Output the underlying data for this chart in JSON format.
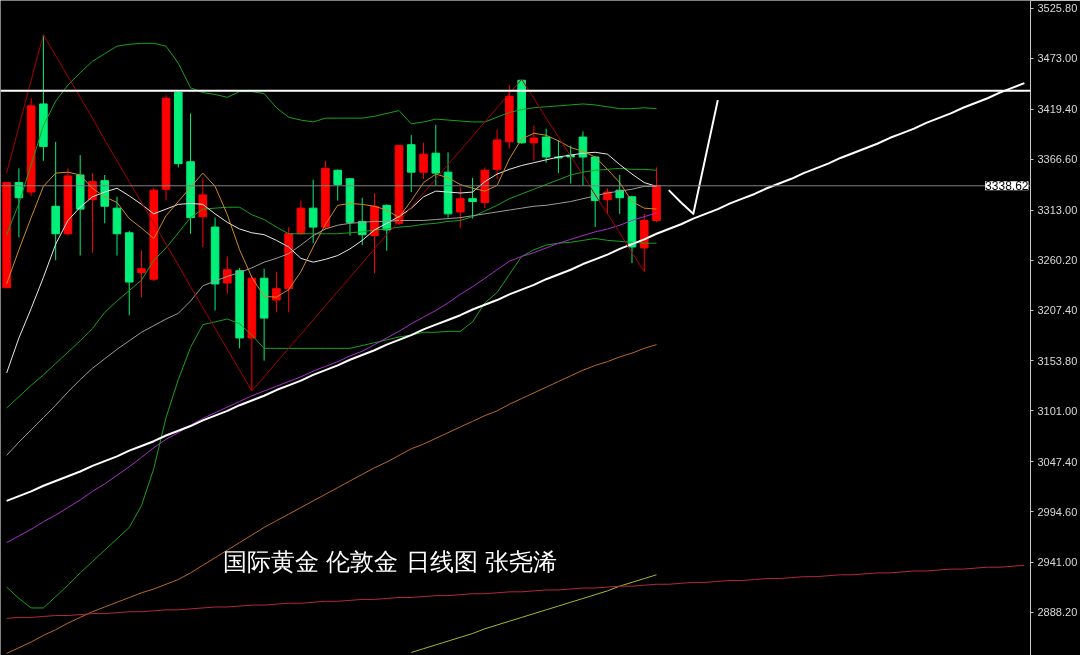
{
  "chart_data": {
    "type": "candlestick",
    "categories": [
      null,
      null,
      null,
      null,
      null,
      null,
      null,
      null,
      null,
      null,
      null,
      null,
      null,
      null,
      null,
      null,
      null,
      null,
      null,
      null,
      null,
      null,
      null,
      null,
      null,
      null,
      null,
      null,
      null,
      null,
      null,
      null,
      null,
      null,
      null,
      null,
      null,
      null,
      null,
      null,
      null,
      null,
      null,
      null,
      null,
      null,
      null,
      null,
      null,
      null,
      null,
      null,
      null,
      null,
      null,
      null,
      null,
      null,
      null,
      null,
      null,
      null,
      null,
      null,
      null,
      null,
      null,
      null,
      null,
      null,
      null,
      null,
      null,
      null,
      null,
      null,
      null,
      null,
      null,
      null,
      null,
      null,
      null,
      null
    ],
    "ohlc": [
      [
        3231,
        3342,
        3231,
        3342
      ],
      [
        3342,
        3357,
        3284,
        3326
      ],
      [
        3332,
        3431,
        3328,
        3423
      ],
      [
        3425,
        3498,
        3365,
        3380
      ],
      [
        3317,
        3385,
        3260,
        3288
      ],
      [
        3288,
        3357,
        3286,
        3349
      ],
      [
        3350,
        3371,
        3265,
        3314
      ],
      [
        3324,
        3352,
        3268,
        3343
      ],
      [
        3344,
        3350,
        3299,
        3317
      ],
      [
        3315,
        3327,
        3265,
        3288
      ],
      [
        3289,
        3291,
        3202,
        3237
      ],
      [
        3247,
        3270,
        3221,
        3251
      ],
      [
        3240,
        3336,
        3238,
        3334
      ],
      [
        3335,
        3434,
        3323,
        3431
      ],
      [
        3437,
        3438,
        3358,
        3362
      ],
      [
        3364,
        3415,
        3288,
        3305
      ],
      [
        3306,
        3346,
        3274,
        3329
      ],
      [
        3295,
        3305,
        3207,
        3235
      ],
      [
        3236,
        3264,
        3225,
        3250
      ],
      [
        3249,
        3252,
        3167,
        3178
      ],
      [
        3178,
        3244,
        3122,
        3241
      ],
      [
        3241,
        3251,
        3154,
        3199
      ],
      [
        3218,
        3248,
        3205,
        3230
      ],
      [
        3230,
        3295,
        3205,
        3288
      ],
      [
        3288,
        3323,
        3287,
        3315
      ],
      [
        3315,
        3345,
        3278,
        3295
      ],
      [
        3295,
        3365,
        3293,
        3357
      ],
      [
        3355,
        3356,
        3323,
        3340
      ],
      [
        3346,
        3347,
        3286,
        3300
      ],
      [
        3301,
        3326,
        3276,
        3287
      ],
      [
        3286,
        3331,
        3246,
        3317
      ],
      [
        3318,
        3319,
        3270,
        3292
      ],
      [
        3299,
        3382,
        3297,
        3381
      ],
      [
        3382,
        3392,
        3332,
        3353
      ],
      [
        3353,
        3384,
        3346,
        3372
      ],
      [
        3373,
        3403,
        3339,
        3352
      ],
      [
        3353,
        3374,
        3305,
        3309
      ],
      [
        3311,
        3337,
        3294,
        3325
      ],
      [
        3325,
        3347,
        3304,
        3322
      ],
      [
        3321,
        3358,
        3315,
        3355
      ],
      [
        3356,
        3398,
        3346,
        3387
      ],
      [
        3385,
        3445,
        3378,
        3433
      ],
      [
        3450,
        3451,
        3383,
        3384
      ],
      [
        3384,
        3402,
        3365,
        3389
      ],
      [
        3390,
        3399,
        3363,
        3369
      ],
      [
        3369,
        3387,
        3352,
        3368
      ],
      [
        3371,
        3381,
        3341,
        3369
      ],
      [
        3390,
        3396,
        3339,
        3369
      ],
      [
        3369,
        3370,
        3295,
        3323
      ],
      [
        3324,
        3336,
        3309,
        3332
      ],
      [
        3334,
        3350,
        3309,
        3326
      ],
      [
        3327,
        3328,
        3257,
        3274
      ],
      [
        3273,
        3309,
        3248,
        3302
      ],
      [
        3302,
        3358,
        3300,
        3339
      ],
      null,
      null,
      null,
      null,
      null,
      null,
      null,
      null,
      null,
      null,
      null,
      null,
      null,
      null,
      null,
      null,
      null,
      null,
      null,
      null,
      null,
      null,
      null,
      null,
      null,
      null,
      null,
      null,
      null,
      null
    ],
    "colors": [
      "#ff0000",
      "#00f07a",
      "#ff0000",
      "#00f07a",
      "#00f07a",
      "#ff0000",
      "#00f07a",
      "#ff0000",
      "#00f07a",
      "#00f07a",
      "#00f07a",
      "#ff0000",
      "#ff0000",
      "#ff0000",
      "#00f07a",
      "#00f07a",
      "#ff0000",
      "#00f07a",
      "#ff0000",
      "#00f07a",
      "#ff0000",
      "#00f07a",
      "#ff0000",
      "#ff0000",
      "#ff0000",
      "#00f07a",
      "#ff0000",
      "#00f07a",
      "#00f07a",
      "#00f07a",
      "#ff0000",
      "#00f07a",
      "#ff0000",
      "#00f07a",
      "#ff0000",
      "#00f07a",
      "#00f07a",
      "#ff0000",
      "#00f07a",
      "#ff0000",
      "#ff0000",
      "#ff0000",
      "#00f07a",
      "#ff0000",
      "#00f07a",
      "#00f07a",
      "#00f07a",
      "#00f07a",
      "#00f07a",
      "#ff0000",
      "#00f07a",
      "#00f07a",
      "#ff0000",
      "#ff0000",
      null,
      null,
      null,
      null,
      null,
      null,
      null,
      null,
      null,
      null,
      null,
      null,
      null,
      null,
      null,
      null,
      null,
      null,
      null,
      null,
      null,
      null,
      null,
      null,
      null,
      null,
      null,
      null,
      null,
      null
    ],
    "series": [
      {
        "type": "line",
        "color": "#1aa01a",
        "values": [
          3287,
          3320,
          3361,
          3402,
          3428,
          3445,
          3458,
          3470,
          3478,
          3486,
          3488,
          3489,
          3489,
          3486,
          3468,
          3442,
          3437,
          3435,
          3432,
          3438,
          3438,
          3436,
          3421,
          3411,
          3408,
          3406,
          3410,
          3410,
          3410,
          3410,
          3412,
          3415,
          3418,
          3404,
          3406,
          3409,
          3408,
          3407,
          3406,
          3406,
          3411,
          3416,
          3419,
          3421,
          3422,
          3423,
          3424,
          3425,
          3424,
          3422,
          3420,
          3420,
          3421,
          3420,
          null,
          null,
          null,
          null,
          null,
          null,
          null,
          null,
          null,
          null,
          null,
          null,
          null,
          null,
          null,
          null,
          null,
          null,
          null,
          null,
          null,
          null,
          null,
          null,
          null,
          null,
          null,
          null,
          null,
          null
        ]
      },
      {
        "type": "line",
        "color": "#1aa01a",
        "values": [
          3104,
          3116,
          3128,
          3139,
          3151,
          3163,
          3175,
          3188,
          3205,
          3217,
          3228,
          3239,
          3260,
          3273,
          3289,
          3305,
          3314,
          3315,
          3316,
          3316,
          3308,
          3303,
          3295,
          3288,
          3288,
          3288,
          3288,
          3288,
          3289,
          3290,
          3292,
          3293,
          3295,
          3296,
          3298,
          3299,
          3301,
          3302,
          3306,
          3312,
          3318,
          3325,
          3330,
          3335,
          3340,
          3345,
          3350,
          3353,
          3355,
          3356,
          3357,
          3356,
          3356,
          3355,
          null,
          null,
          null,
          null,
          null,
          null,
          null,
          null,
          null,
          null,
          null,
          null,
          null,
          null,
          null,
          null,
          null,
          null,
          null,
          null,
          null,
          null,
          null,
          null,
          null,
          null,
          null,
          null,
          null,
          null
        ]
      },
      {
        "type": "line",
        "color": "#1aa01a",
        "values": [
          2915,
          2903,
          2893,
          2893,
          2905,
          2917,
          2930,
          2942,
          2954,
          2966,
          2978,
          3001,
          3040,
          3094,
          3134,
          3168,
          3192,
          3195,
          3198,
          3193,
          3181,
          3167,
          3167,
          3167,
          3167,
          3167,
          3167,
          3167,
          3167,
          3170,
          3173,
          3176,
          3179,
          3181,
          3184,
          3184,
          3185,
          3185,
          3195,
          3215,
          3226,
          3245,
          3264,
          3271,
          3276,
          3278,
          3279,
          3281,
          3283,
          3281,
          3280,
          3279,
          3278,
          3278,
          null,
          null,
          null,
          null,
          null,
          null,
          null,
          null,
          null,
          null,
          null,
          null,
          null,
          null,
          null,
          null,
          null,
          null,
          null,
          null,
          null,
          null,
          null,
          null,
          null,
          null,
          null,
          null,
          null,
          null
        ]
      },
      {
        "type": "line",
        "color": "#e6e6e6",
        "values": [
          3141,
          3178,
          3209,
          3242,
          3277,
          3302,
          3316,
          3327,
          3332,
          3336,
          3328,
          3319,
          3309,
          3314,
          3319,
          3320,
          3319,
          3309,
          3300,
          3293,
          3289,
          3287,
          3281,
          3274,
          3262,
          3258,
          3261,
          3265,
          3272,
          3281,
          3292,
          3299,
          3306,
          3315,
          3327,
          3333,
          3332,
          3331,
          3332,
          3343,
          3351,
          3356,
          3360,
          3363,
          3366,
          3369,
          3371,
          3373,
          3374,
          3372,
          3361,
          3351,
          3342,
          3338,
          null,
          null,
          null,
          null,
          null,
          null,
          null,
          null,
          null,
          null,
          null,
          null,
          null,
          null,
          null,
          null,
          null,
          null,
          null,
          null,
          null,
          null,
          null,
          null,
          null,
          null,
          null,
          null,
          null,
          null
        ]
      },
      {
        "type": "line",
        "color": "#9a9a9a",
        "values": [
          3054,
          3068,
          3081,
          3094,
          3107,
          3121,
          3134,
          3146,
          3156,
          3166,
          3175,
          3184,
          3191,
          3198,
          3204,
          3217,
          3233,
          3238,
          3243,
          3247,
          3252,
          3258,
          3262,
          3267,
          3276,
          3286,
          3293,
          3297,
          3299,
          3300,
          3301,
          3301,
          3302,
          3302,
          3302,
          3303,
          3304,
          3305,
          3307,
          3309,
          3311,
          3313,
          3315,
          3317,
          3318,
          3320,
          3322,
          3325,
          3328,
          3331,
          3333,
          3335,
          3338,
          3338,
          null,
          null,
          null,
          null,
          null,
          null,
          null,
          null,
          null,
          null,
          null,
          null,
          null,
          null,
          null,
          null,
          null,
          null,
          null,
          null,
          null,
          null,
          null,
          null,
          null,
          null,
          null,
          null,
          null,
          null
        ]
      },
      {
        "type": "line",
        "color": "#d08a1c",
        "values": [
          3235,
          3271,
          3305,
          3338,
          3352,
          3353,
          3350,
          3336,
          3327,
          3321,
          3304,
          3294,
          3283,
          3307,
          3322,
          3337,
          3352,
          3338,
          3308,
          3271,
          3242,
          3222,
          3221,
          3229,
          3248,
          3274,
          3298,
          3318,
          3320,
          3319,
          3317,
          3313,
          3305,
          3323,
          3342,
          3351,
          3347,
          3340,
          3336,
          3333,
          3339,
          3367,
          3388,
          3394,
          3392,
          3386,
          3379,
          3375,
          3369,
          3356,
          3342,
          3322,
          3315,
          3314,
          null,
          null,
          null,
          null,
          null,
          null,
          null,
          null,
          null,
          null,
          null,
          null,
          null,
          null,
          null,
          null,
          null,
          null,
          null,
          null,
          null,
          null,
          null,
          null,
          null,
          null,
          null,
          null,
          null,
          null
        ]
      },
      {
        "type": "line",
        "color": "#a82ec8",
        "values": [
          2962,
          2969,
          2976,
          2984,
          2991,
          2999,
          3007,
          3016,
          3024,
          3033,
          3042,
          3052,
          3062,
          3071,
          3078,
          3086,
          3093,
          3099,
          3105,
          3111,
          3117,
          3122,
          3127,
          3132,
          3137,
          3143,
          3148,
          3153,
          3159,
          3164,
          3171,
          3178,
          3185,
          3193,
          3200,
          3207,
          3215,
          3224,
          3232,
          3241,
          3250,
          3259,
          3264,
          3268,
          3273,
          3278,
          3282,
          3286,
          3290,
          3293,
          3297,
          3302,
          3306,
          3310,
          null,
          null,
          null,
          null,
          null,
          null,
          null,
          null,
          null,
          null,
          null,
          null,
          null,
          null,
          null,
          null,
          null,
          null,
          null,
          null,
          null,
          null,
          null,
          null,
          null,
          null,
          null,
          null,
          null,
          null
        ]
      },
      {
        "type": "line",
        "color": "#b86a28",
        "values": [
          2845,
          2851,
          2857,
          2864,
          2870,
          2877,
          2883,
          2889,
          2894,
          2899,
          2904,
          2909,
          2913,
          2918,
          2923,
          2930,
          2938,
          2946,
          2954,
          2962,
          2970,
          2978,
          2985,
          2992,
          2999,
          3006,
          3013,
          3020,
          3027,
          3034,
          3041,
          3047,
          3054,
          3061,
          3066,
          3072,
          3078,
          3084,
          3090,
          3096,
          3101,
          3108,
          3114,
          3120,
          3126,
          3132,
          3138,
          3144,
          3149,
          3153,
          3158,
          3162,
          3167,
          3171,
          null,
          null,
          null,
          null,
          null,
          null,
          null,
          null,
          null,
          null,
          null,
          null,
          null,
          null,
          null,
          null,
          null,
          null,
          null,
          null,
          null,
          null,
          null,
          null,
          null,
          null,
          null,
          null,
          null,
          null
        ]
      },
      {
        "type": "line",
        "color": "#a8b82a",
        "values": [
          null,
          null,
          null,
          null,
          null,
          null,
          null,
          null,
          null,
          null,
          null,
          null,
          null,
          null,
          null,
          null,
          null,
          null,
          null,
          null,
          null,
          null,
          null,
          null,
          null,
          null,
          null,
          null,
          null,
          null,
          null,
          null,
          null,
          2846,
          2850,
          2854,
          2858,
          2862,
          2866,
          2871,
          2875,
          2879,
          2883,
          2887,
          2891,
          2895,
          2899,
          2903,
          2907,
          2911,
          2916,
          2920,
          2924,
          2928,
          null,
          null,
          null,
          null,
          null,
          null,
          null,
          null,
          null,
          null,
          null,
          null,
          null,
          null,
          null,
          null,
          null,
          null,
          null,
          null,
          null,
          null,
          null,
          null,
          null,
          null,
          null,
          null,
          null,
          null
        ]
      },
      {
        "type": "line",
        "color": "#b4283c",
        "values": [
          2882,
          2883,
          2883,
          2884,
          2885,
          2885,
          2886,
          2887,
          2887,
          2888,
          2889,
          2889,
          2890,
          2891,
          2891,
          2892,
          2893,
          2894,
          2894,
          2895,
          2896,
          2896,
          2897,
          2898,
          2898,
          2899,
          2900,
          2900,
          2901,
          2902,
          2902,
          2903,
          2904,
          2904,
          2905,
          2906,
          2906,
          2907,
          2908,
          2908,
          2909,
          2910,
          2910,
          2911,
          2912,
          2912,
          2913,
          2914,
          2914,
          2915,
          2916,
          2916,
          2917,
          2918,
          2918,
          2919,
          2920,
          2920,
          2921,
          2922,
          2922,
          2923,
          2924,
          2924,
          2925,
          2926,
          2926,
          2927,
          2928,
          2928,
          2929,
          2930,
          2930,
          2931,
          2932,
          2932,
          2933,
          2934,
          2934,
          2935,
          2936,
          2936,
          2937,
          2938
        ]
      },
      {
        "type": "line",
        "color": "#ffffff",
        "values": [
          3006,
          3011,
          3016,
          3022,
          3027,
          3032,
          3037,
          3043,
          3048,
          3053,
          3059,
          3064,
          3069,
          3075,
          3080,
          3085,
          3091,
          3096,
          3101,
          3107,
          3112,
          3117,
          3123,
          3128,
          3133,
          3139,
          3144,
          3149,
          3155,
          3160,
          3165,
          3171,
          3176,
          3181,
          3187,
          3192,
          3197,
          3202,
          3208,
          3213,
          3218,
          3224,
          3229,
          3234,
          3240,
          3245,
          3250,
          3256,
          3261,
          3266,
          3272,
          3277,
          3282,
          3288,
          3293,
          3298,
          3304,
          3309,
          3314,
          3320,
          3325,
          3330,
          3336,
          3341,
          3346,
          3352,
          3357,
          3362,
          3368,
          3373,
          3378,
          3383,
          3389,
          3394,
          3399,
          3405,
          3410,
          3415,
          3421,
          3426,
          3431,
          3437,
          3442,
          3447
        ]
      },
      {
        "type": "line",
        "color": "#a80000",
        "values": [
          3352,
          3401,
          3450,
          3498,
          3476,
          3454,
          3432,
          3410,
          3387,
          3365,
          3343,
          3321,
          3299,
          3277,
          3255,
          3232,
          3210,
          3188,
          3166,
          3144,
          3122,
          3137,
          3152,
          3167,
          3182,
          3197,
          3212,
          3227,
          3242,
          3257,
          3272,
          3287,
          3301,
          3316,
          3331,
          3346,
          3361,
          3376,
          3391,
          3406,
          3421,
          3436,
          3451,
          3431,
          3410,
          3390,
          3370,
          3350,
          3329,
          3309,
          3289,
          3268,
          3248,
          null,
          null,
          null,
          null,
          null,
          null,
          null,
          null,
          null,
          null,
          null,
          null,
          null,
          null,
          null,
          null,
          null,
          null,
          null,
          null,
          null,
          null,
          null,
          null,
          null,
          null,
          null,
          null,
          null,
          null,
          null
        ]
      },
      {
        "type": "line",
        "color": "#ffffff",
        "values": [
          null,
          null,
          null,
          null,
          null,
          null,
          null,
          null,
          null,
          null,
          null,
          null,
          null,
          null,
          null,
          null,
          null,
          null,
          null,
          null,
          null,
          null,
          null,
          null,
          null,
          null,
          null,
          null,
          null,
          null,
          null,
          null,
          null,
          null,
          null,
          null,
          null,
          null,
          null,
          null,
          null,
          null,
          null,
          null,
          null,
          null,
          null,
          null,
          null,
          null,
          null,
          null,
          null,
          null,
          3334,
          3321,
          3309,
          3369,
          3429,
          null,
          null,
          null,
          null,
          null,
          null,
          null,
          null,
          null,
          null,
          null,
          null,
          null,
          null,
          null,
          null,
          null,
          null,
          null,
          null,
          null,
          null,
          null,
          null,
          null
        ]
      }
    ],
    "ylim": [
      2842.8,
      3534.2
    ],
    "yticks": [
      {
        "value": 2888.2,
        "label": "2888.20"
      },
      {
        "value": 2941.0,
        "label": "2941.00"
      },
      {
        "value": 2994.6,
        "label": "2994.60"
      },
      {
        "value": 3047.4,
        "label": "3047.40"
      },
      {
        "value": 3101.0,
        "label": "3101.00"
      },
      {
        "value": 3153.8,
        "label": "3153.80"
      },
      {
        "value": 3207.4,
        "label": "3207.40"
      },
      {
        "value": 3260.2,
        "label": "3260.20"
      },
      {
        "value": 3313.0,
        "label": "3313.00"
      },
      {
        "value": 3366.6,
        "label": "3366.60"
      },
      {
        "value": 3419.4,
        "label": "3419.40"
      },
      {
        "value": 3473.0,
        "label": "3473.00"
      },
      {
        "value": 3525.8,
        "label": "3525.80"
      }
    ],
    "tick_labels": "y",
    "ref_lines": [
      {
        "axis": "y",
        "value": 3439,
        "color": "#ffffff"
      },
      {
        "axis": "y",
        "value": 3338.62,
        "label": "3338.62",
        "color": "#808080"
      }
    ],
    "annotations": [
      "国际黄金 伦敦金 日线图 张尧浠"
    ]
  }
}
